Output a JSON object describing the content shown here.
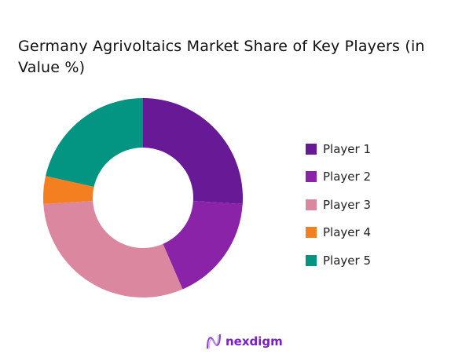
{
  "chart_data": {
    "type": "pie",
    "variant": "donut",
    "title": "Germany Agrivoltaics Market Share of Key Players (in Value %)",
    "categories": [
      "Player 1",
      "Player 2",
      "Player 3",
      "Player 4",
      "Player 5"
    ],
    "values": [
      26,
      17.5,
      30.5,
      4.5,
      21.5
    ],
    "colors": [
      "#681a96",
      "#8b23a8",
      "#dc87a0",
      "#f47f21",
      "#039482"
    ],
    "legend_position": "right",
    "start": "top, clockwise"
  },
  "brand": {
    "name": "nexdigm",
    "color": "#7b1fc4"
  }
}
